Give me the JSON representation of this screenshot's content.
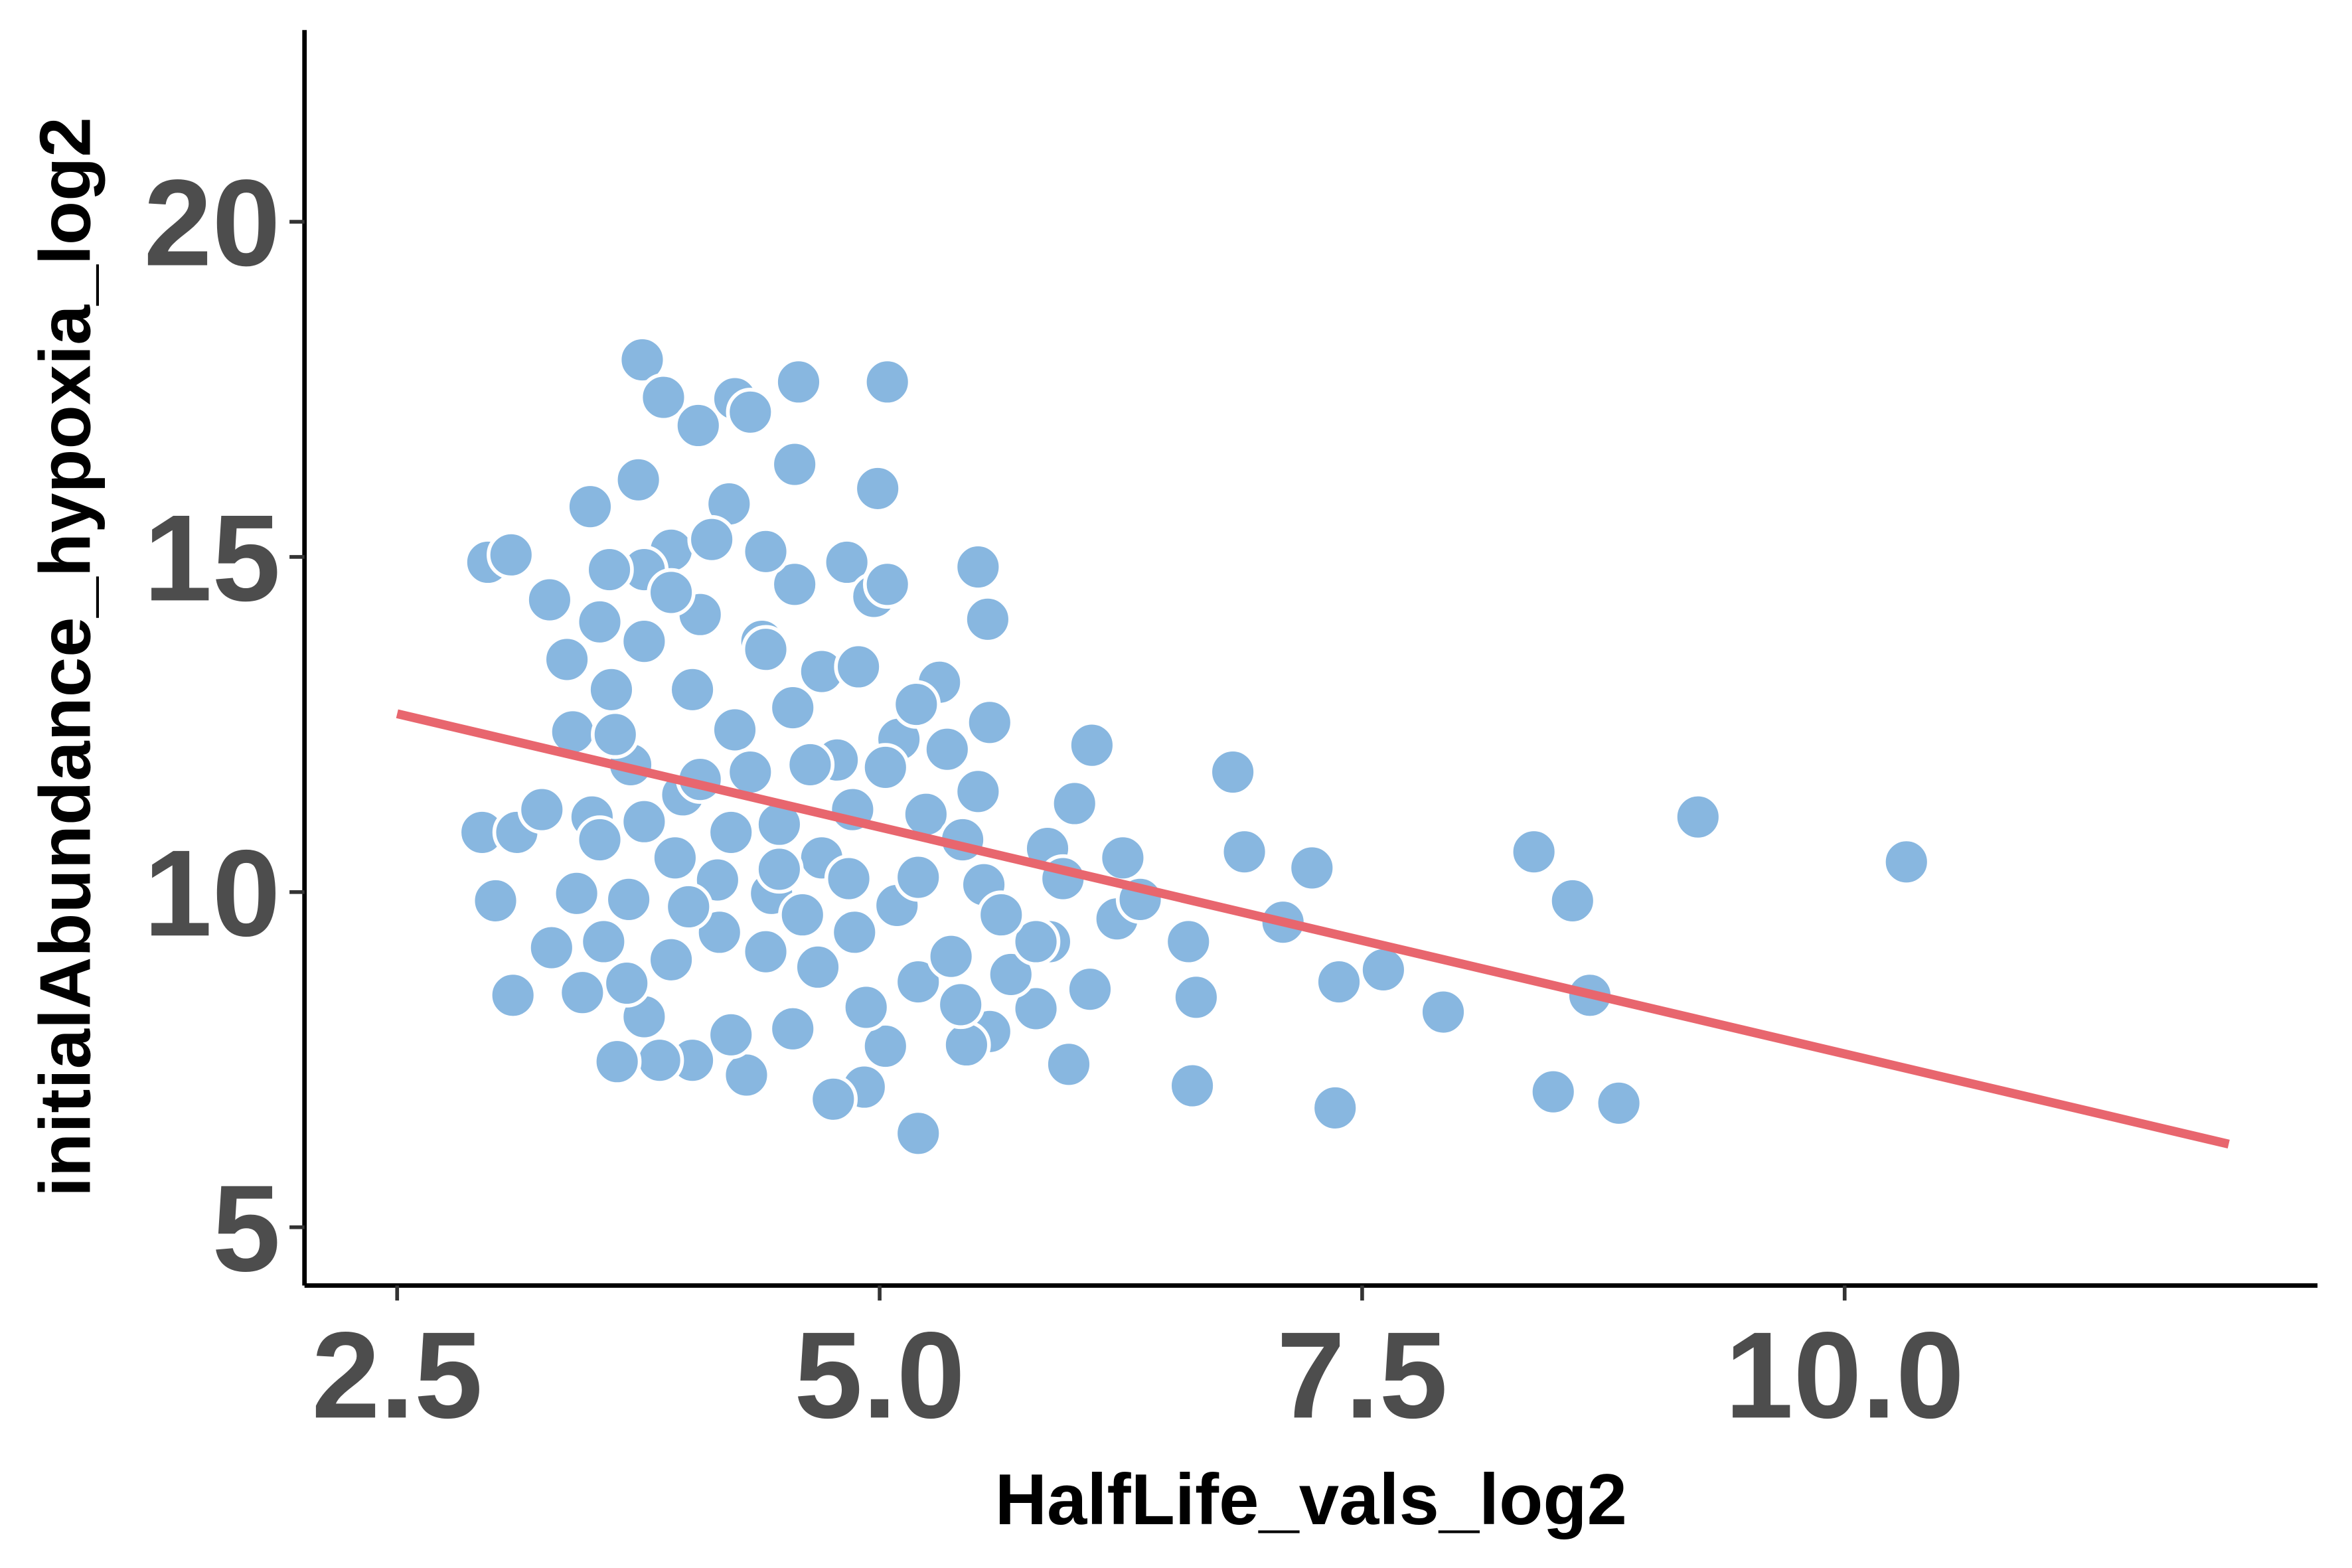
{
  "chart_data": {
    "type": "scatter",
    "x_label": "HalfLife_vals_log2",
    "y_label": "initialAbundance_hypoxia_log2",
    "color": "#88b7e0",
    "x": [
      10.32,
      9.24,
      8.39,
      8.59,
      8.68,
      8.49,
      8.83,
      7.92,
      7.61,
      7.38,
      7.36,
      7.24,
      7.09,
      6.89,
      6.83,
      6.62,
      6.64,
      6.6,
      6.1,
      6.01,
      5.98,
      5.2,
      5.04,
      4.99,
      4.58,
      4.56,
      3.77,
      3.88,
      4.06,
      4.25,
      4.33,
      2.97,
      3.09,
      2.94,
      3.12,
      3.01,
      3.1,
      3.29,
      3.5,
      3.75,
      3.92,
      4.22,
      4.39,
      4.56,
      4.83,
      4.97,
      5.04,
      5.51,
      5.56,
      5.31,
      5.57,
      5.1,
      4.78,
      5.51,
      5.87,
      6.26,
      6.23,
      5.88,
      5.81,
      6.09,
      5.54,
      5.57,
      5.45,
      5.03,
      4.92,
      4.76,
      4.55,
      4.31,
      4.23,
      4.03,
      3.86,
      3.64,
      3.78,
      3.69,
      3.46,
      3.3,
      3.43,
      3.57,
      3.92,
      4.17,
      4.41,
      4.44,
      4.16,
      3.94,
      3.78,
      3.51,
      3.25,
      3.41,
      3.61,
      3.78,
      4.03,
      4.25,
      4.41,
      4.55,
      4.7,
      4.89,
      4.64,
      4.48,
      4.23,
      4.7,
      4.84,
      5.09,
      4.87,
      4.68,
      4.93,
      5.2,
      5.37,
      5.2,
      5.24,
      5.03,
      4.86,
      5.68,
      5.81,
      5.95,
      3.71,
      3.98,
      4.33,
      4.07,
      3.78,
      4.13,
      4.41,
      3.92,
      3.6,
      3.55,
      3.38,
      3.63,
      4.07,
      4.48,
      4.6,
      4.01,
      3.7,
      3.55,
      5.35,
      5.19,
      5.43,
      5.63,
      6.35,
      5.42
    ],
    "values": [
      10.45,
      11.12,
      10.6,
      9.87,
      8.46,
      7.02,
      6.85,
      8.21,
      8.84,
      8.66,
      6.78,
      10.36,
      9.55,
      10.6,
      11.79,
      7.11,
      8.43,
      9.26,
      12.19,
      11.32,
      7.43,
      6.4,
      17.61,
      16.02,
      17.61,
      16.38,
      17.94,
      17.38,
      16.96,
      17.36,
      17.16,
      14.92,
      15.03,
      10.89,
      10.89,
      9.87,
      8.46,
      14.36,
      15.75,
      16.15,
      15.1,
      15.79,
      13.74,
      14.59,
      14.92,
      14.41,
      14.59,
      14.85,
      14.07,
      13.13,
      12.53,
      12.28,
      11.97,
      11.5,
      10.65,
      10.51,
      9.6,
      9.26,
      8.26,
      8.55,
      10.11,
      7.92,
      7.72,
      7.7,
      7.09,
      6.91,
      7.96,
      7.27,
      7.87,
      7.49,
      7.49,
      7.47,
      8.14,
      8.64,
      8.5,
      9.17,
      9.98,
      9.26,
      8.99,
      9.4,
      9.11,
      9.98,
      10.18,
      10.51,
      11.05,
      11.12,
      11.23,
      12.39,
      13.02,
      13.74,
      13.02,
      12.42,
      13.62,
      12.75,
      13.29,
      13.36,
      11.9,
      11.01,
      10.89,
      10.51,
      10.2,
      9.8,
      9.4,
      8.88,
      8.28,
      8.66,
      9.04,
      10.22,
      11.16,
      11.86,
      11.23,
      8.77,
      9.26,
      10.2,
      11.9,
      11.45,
      11.79,
      14.14,
      14.81,
      15.26,
      15.08,
      14.47,
      14.81,
      14.03,
      13.47,
      12.35,
      11.68,
      10.34,
      9.66,
      9.78,
      9.89,
      10.78,
      12.13,
      12.8,
      10.78,
      9.66,
      9.89,
      8.32
    ],
    "fit": {
      "type": "line",
      "color": "#e8666e",
      "x": [
        2.5,
        11.99
      ],
      "values": [
        12.66,
        6.24
      ]
    },
    "xlim": [
      2.02,
      12.45
    ],
    "ylim": [
      4.13,
      22.86
    ],
    "xticks": [
      {
        "value": 2.5,
        "label": "2.5"
      },
      {
        "value": 5,
        "label": "5.0"
      },
      {
        "value": 7.5,
        "label": "7.5"
      },
      {
        "value": 10,
        "label": "10.0"
      }
    ],
    "yticks": [
      5,
      10,
      15,
      20
    ]
  }
}
